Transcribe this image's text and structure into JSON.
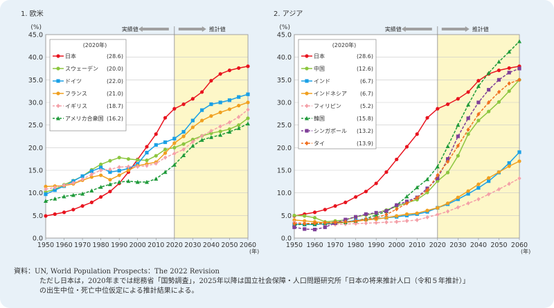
{
  "source": {
    "line1": "資料：UN, World Population Prospects：The 2022 Revision",
    "line2": "ただし日本は，2020年までは総務省「国勢調査」，2025年以降は国立社会保障・人口問題研究所「日本の将来推計人口（令和５年推計）」",
    "line3": "の出生中位・死亡中位仮定による推計結果による。"
  },
  "chart_data": [
    {
      "type": "line",
      "title": "1. 欧米",
      "ylabel": "(%)",
      "xunit": "(年)",
      "ylim": [
        0,
        45
      ],
      "xlim": [
        1950,
        2060
      ],
      "xticks": [
        "1950",
        "1960",
        "1970",
        "1980",
        "1990",
        "2000",
        "2010",
        "2020",
        "2030",
        "2040",
        "2050",
        "2060"
      ],
      "yticks": [
        "0.0",
        "5.0",
        "10.0",
        "15.0",
        "20.0",
        "25.0",
        "30.0",
        "35.0",
        "40.0",
        "45.0"
      ],
      "split_year": 2020,
      "actual_label": "実績値",
      "projection_label": "推計値",
      "legend_title": "(2020年)",
      "legend_placement": "top-left",
      "grid": true,
      "series": [
        {
          "name": "日本",
          "legend_value": "(28.6)",
          "color": "#e8141f",
          "marker": "circle",
          "dash": false,
          "x": [
            1950,
            1955,
            1960,
            1965,
            1970,
            1975,
            1980,
            1985,
            1990,
            1995,
            2000,
            2005,
            2010,
            2015,
            2020,
            2025,
            2030,
            2035,
            2040,
            2045,
            2050,
            2055,
            2060
          ],
          "y": [
            4.9,
            5.3,
            5.7,
            6.3,
            7.1,
            7.9,
            9.1,
            10.3,
            12.1,
            14.6,
            17.4,
            20.2,
            23.0,
            26.6,
            28.6,
            29.6,
            30.8,
            32.3,
            34.8,
            36.3,
            37.1,
            37.6,
            38.0
          ]
        },
        {
          "name": "スウェーデン",
          "legend_value": "(20.0)",
          "color": "#8cc63f",
          "marker": "circle",
          "dash": false,
          "x": [
            1950,
            1955,
            1960,
            1965,
            1970,
            1975,
            1980,
            1985,
            1990,
            1995,
            2000,
            2005,
            2010,
            2015,
            2020,
            2025,
            2030,
            2035,
            2040,
            2045,
            2050,
            2055,
            2060
          ],
          "y": [
            10.2,
            10.8,
            11.8,
            12.7,
            13.7,
            15.1,
            16.3,
            17.1,
            17.8,
            17.5,
            17.3,
            17.2,
            18.2,
            19.6,
            20.0,
            20.8,
            21.8,
            22.6,
            23.2,
            23.6,
            24.1,
            25.0,
            26.5
          ]
        },
        {
          "name": "ドイツ",
          "legend_value": "(22.0)",
          "color": "#1aa0e6",
          "marker": "square",
          "dash": false,
          "x": [
            1950,
            1955,
            1960,
            1965,
            1970,
            1975,
            1980,
            1985,
            1990,
            1995,
            2000,
            2005,
            2010,
            2015,
            2020,
            2025,
            2030,
            2035,
            2040,
            2045,
            2050,
            2055,
            2060
          ],
          "y": [
            9.7,
            10.6,
            11.5,
            12.6,
            13.7,
            14.8,
            15.6,
            14.6,
            14.9,
            15.4,
            16.4,
            18.9,
            20.6,
            21.2,
            22.0,
            23.5,
            26.0,
            28.3,
            29.6,
            30.0,
            30.5,
            31.2,
            31.8
          ]
        },
        {
          "name": "フランス",
          "legend_value": "(21.0)",
          "color": "#f0a020",
          "marker": "circle",
          "dash": false,
          "x": [
            1950,
            1955,
            1960,
            1965,
            1970,
            1975,
            1980,
            1985,
            1990,
            1995,
            2000,
            2005,
            2010,
            2015,
            2020,
            2025,
            2030,
            2035,
            2040,
            2045,
            2050,
            2055,
            2060
          ],
          "y": [
            11.4,
            11.5,
            11.6,
            12.0,
            12.8,
            13.5,
            13.9,
            12.9,
            13.9,
            15.0,
            16.0,
            16.4,
            16.8,
            18.8,
            21.0,
            22.5,
            24.5,
            26.0,
            27.0,
            27.8,
            28.5,
            29.3,
            30.0
          ]
        },
        {
          "name": "イギリス",
          "legend_value": "(18.7)",
          "color": "#f4a0a8",
          "marker": "diamond",
          "dash": true,
          "x": [
            1950,
            1955,
            1960,
            1965,
            1970,
            1975,
            1980,
            1985,
            1990,
            1995,
            2000,
            2005,
            2010,
            2015,
            2020,
            2025,
            2030,
            2035,
            2040,
            2045,
            2050,
            2055,
            2060
          ],
          "y": [
            10.8,
            11.2,
            11.7,
            12.2,
            13.0,
            14.1,
            15.0,
            15.2,
            15.7,
            15.8,
            15.8,
            16.0,
            16.5,
            17.8,
            18.7,
            19.6,
            21.3,
            22.6,
            23.7,
            24.7,
            25.6,
            26.8,
            28.4
          ]
        },
        {
          "name": "アメリカ合衆国",
          "legend_value": "(16.2)",
          "color": "#1f9a3a",
          "marker": "triangle",
          "dash": true,
          "x": [
            1950,
            1955,
            1960,
            1965,
            1970,
            1975,
            1980,
            1985,
            1990,
            1995,
            2000,
            2005,
            2010,
            2015,
            2020,
            2025,
            2030,
            2035,
            2040,
            2045,
            2050,
            2055,
            2060
          ],
          "y": [
            8.2,
            8.7,
            9.2,
            9.5,
            9.8,
            10.5,
            11.3,
            11.9,
            12.4,
            12.6,
            12.4,
            12.4,
            13.1,
            14.6,
            16.2,
            18.3,
            20.4,
            21.7,
            22.3,
            22.8,
            23.5,
            24.3,
            25.3
          ]
        }
      ]
    },
    {
      "type": "line",
      "title": "2. アジア",
      "ylabel": "(%)",
      "xunit": "(年)",
      "ylim": [
        0,
        45
      ],
      "xlim": [
        1950,
        2060
      ],
      "xticks": [
        "1950",
        "1960",
        "1970",
        "1980",
        "1990",
        "2000",
        "2010",
        "2020",
        "2030",
        "2040",
        "2050",
        "2060"
      ],
      "yticks": [
        "0.0",
        "5.0",
        "10.0",
        "15.0",
        "20.0",
        "25.0",
        "30.0",
        "35.0",
        "40.0",
        "45.0"
      ],
      "split_year": 2020,
      "actual_label": "実績値",
      "projection_label": "推計値",
      "legend_title": "(2020年)",
      "legend_placement": "top-left",
      "grid": true,
      "series": [
        {
          "name": "日本",
          "legend_value": "(28.6)",
          "color": "#e8141f",
          "marker": "circle",
          "dash": false,
          "x": [
            1950,
            1955,
            1960,
            1965,
            1970,
            1975,
            1980,
            1985,
            1990,
            1995,
            2000,
            2005,
            2010,
            2015,
            2020,
            2025,
            2030,
            2035,
            2040,
            2045,
            2050,
            2055,
            2060
          ],
          "y": [
            4.9,
            5.3,
            5.7,
            6.3,
            7.1,
            7.9,
            9.1,
            10.3,
            12.1,
            14.6,
            17.4,
            20.2,
            23.0,
            26.6,
            28.6,
            29.6,
            30.8,
            32.3,
            34.8,
            36.3,
            37.1,
            37.6,
            38.0
          ]
        },
        {
          "name": "中国",
          "legend_value": "(12.6)",
          "color": "#8cc63f",
          "marker": "circle",
          "dash": false,
          "x": [
            1950,
            1955,
            1960,
            1965,
            1970,
            1975,
            1980,
            1985,
            1990,
            1995,
            2000,
            2005,
            2010,
            2015,
            2020,
            2025,
            2030,
            2035,
            2040,
            2045,
            2050,
            2055,
            2060
          ],
          "y": [
            5.0,
            4.9,
            4.5,
            3.6,
            3.8,
            4.0,
            4.7,
            5.1,
            5.5,
            6.2,
            7.0,
            7.8,
            8.5,
            10.1,
            12.6,
            14.5,
            18.2,
            23.0,
            26.0,
            28.0,
            30.1,
            32.5,
            35.0
          ]
        },
        {
          "name": "インド",
          "legend_value": "(6.7)",
          "color": "#1aa0e6",
          "marker": "square",
          "dash": false,
          "x": [
            1950,
            1955,
            1960,
            1965,
            1970,
            1975,
            1980,
            1985,
            1990,
            1995,
            2000,
            2005,
            2010,
            2015,
            2020,
            2025,
            2030,
            2035,
            2040,
            2045,
            2050,
            2055,
            2060
          ],
          "y": [
            3.1,
            3.0,
            3.0,
            3.1,
            3.3,
            3.6,
            3.9,
            4.1,
            4.3,
            4.5,
            4.7,
            5.0,
            5.3,
            5.8,
            6.7,
            7.5,
            8.6,
            9.8,
            11.1,
            12.6,
            14.5,
            16.6,
            19.0
          ]
        },
        {
          "name": "インドネシア",
          "legend_value": "(6.7)",
          "color": "#f0a020",
          "marker": "circle",
          "dash": false,
          "x": [
            1950,
            1955,
            1960,
            1965,
            1970,
            1975,
            1980,
            1985,
            1990,
            1995,
            2000,
            2005,
            2010,
            2015,
            2020,
            2025,
            2030,
            2035,
            2040,
            2045,
            2050,
            2055,
            2060
          ],
          "y": [
            4.0,
            3.8,
            3.6,
            3.4,
            3.3,
            3.5,
            3.7,
            4.0,
            4.2,
            4.5,
            4.9,
            5.3,
            5.5,
            6.1,
            6.7,
            7.7,
            9.0,
            10.4,
            11.9,
            13.3,
            14.6,
            15.9,
            17.0
          ]
        },
        {
          "name": "フィリピン",
          "legend_value": "(5.2)",
          "color": "#f4a0a8",
          "marker": "diamond",
          "dash": true,
          "x": [
            1950,
            1955,
            1960,
            1965,
            1970,
            1975,
            1980,
            1985,
            1990,
            1995,
            2000,
            2005,
            2010,
            2015,
            2020,
            2025,
            2030,
            2035,
            2040,
            2045,
            2050,
            2055,
            2060
          ],
          "y": [
            3.5,
            3.3,
            3.1,
            3.0,
            3.0,
            3.1,
            3.2,
            3.3,
            3.4,
            3.5,
            3.6,
            3.8,
            4.0,
            4.6,
            5.2,
            5.9,
            6.8,
            7.7,
            8.6,
            9.7,
            10.8,
            12.0,
            13.2
          ]
        },
        {
          "name": "韓国",
          "legend_value": "(15.8)",
          "color": "#1f9a3a",
          "marker": "triangle",
          "dash": true,
          "x": [
            1950,
            1955,
            1960,
            1965,
            1970,
            1975,
            1980,
            1985,
            1990,
            1995,
            2000,
            2005,
            2010,
            2015,
            2020,
            2025,
            2030,
            2035,
            2040,
            2045,
            2050,
            2055,
            2060
          ],
          "y": [
            2.9,
            3.1,
            3.1,
            3.3,
            3.4,
            3.5,
            3.8,
            4.3,
            5.1,
            5.9,
            7.3,
            9.2,
            11.2,
            13.0,
            15.8,
            20.3,
            25.0,
            29.5,
            33.6,
            36.5,
            39.0,
            41.2,
            43.5
          ]
        },
        {
          "name": "シンガポール",
          "legend_value": "(13.2)",
          "color": "#7f3f98",
          "marker": "square",
          "dash": true,
          "x": [
            1950,
            1955,
            1960,
            1965,
            1970,
            1975,
            1980,
            1985,
            1990,
            1995,
            2000,
            2005,
            2010,
            2015,
            2020,
            2025,
            2030,
            2035,
            2040,
            2045,
            2050,
            2055,
            2060
          ],
          "y": [
            2.4,
            2.0,
            1.9,
            2.4,
            3.3,
            4.1,
            4.7,
            5.3,
            5.6,
            6.0,
            7.3,
            8.1,
            9.0,
            11.0,
            13.2,
            17.5,
            22.5,
            26.5,
            30.0,
            32.8,
            35.0,
            36.6,
            37.5
          ]
        },
        {
          "name": "タイ",
          "legend_value": "(13.9)",
          "color": "#f07020",
          "marker": "diamond",
          "dash": true,
          "x": [
            1950,
            1955,
            1960,
            1965,
            1970,
            1975,
            1980,
            1985,
            1990,
            1995,
            2000,
            2005,
            2010,
            2015,
            2020,
            2025,
            2030,
            2035,
            2040,
            2045,
            2050,
            2055,
            2060
          ],
          "y": [
            3.2,
            3.2,
            3.3,
            3.4,
            3.5,
            3.6,
            3.8,
            4.2,
            4.5,
            5.2,
            6.4,
            7.7,
            8.9,
            10.6,
            13.9,
            16.9,
            20.4,
            24.0,
            27.4,
            30.0,
            32.3,
            34.2,
            35.0
          ]
        }
      ]
    }
  ]
}
